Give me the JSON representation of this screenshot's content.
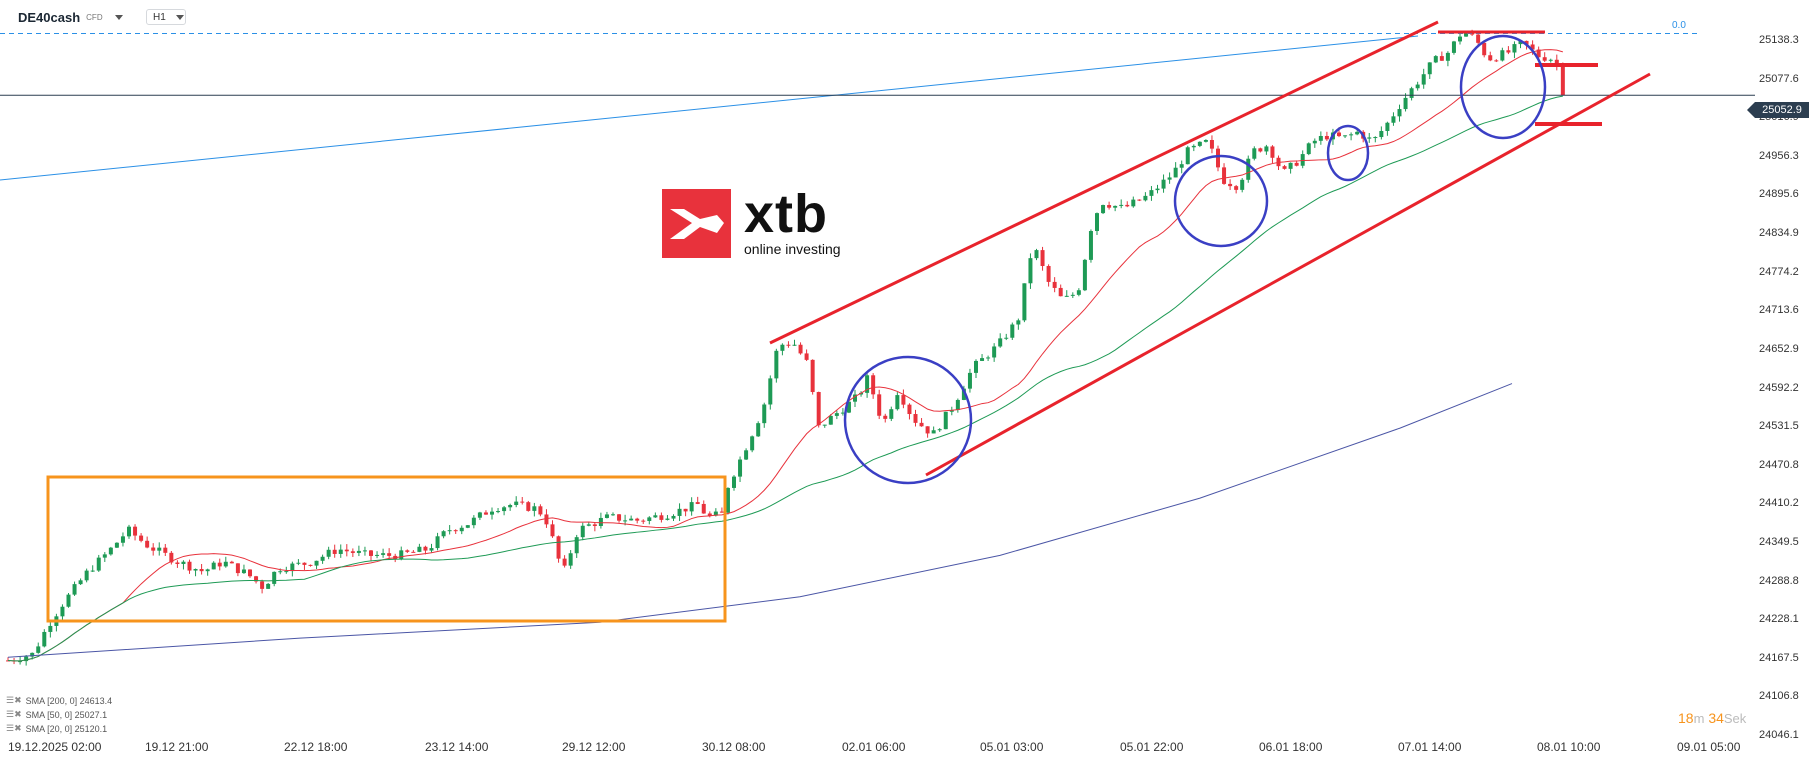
{
  "header": {
    "symbol": "DE40cash",
    "instrument_type": "CFD",
    "timeframe": "H1"
  },
  "fib_label": "0.0",
  "current_price": "25052.9",
  "y_axis": {
    "ticks": [
      "25138.3",
      "25077.6",
      "25016.9",
      "24956.3",
      "24895.6",
      "24834.9",
      "24774.2",
      "24713.6",
      "24652.9",
      "24592.2",
      "24531.5",
      "24470.8",
      "24410.2",
      "24349.5",
      "24288.8",
      "24228.1",
      "24167.5",
      "24106.8",
      "24046.1"
    ]
  },
  "x_axis": {
    "ticks": [
      "19.12.2025  02:00",
      "19.12  21:00",
      "22.12  18:00",
      "23.12  14:00",
      "29.12  12:00",
      "30.12  08:00",
      "02.01  06:00",
      "05.01  03:00",
      "05.01  22:00",
      "06.01  18:00",
      "07.01  14:00",
      "08.01  10:00",
      "09.01  05:00"
    ]
  },
  "legend": [
    {
      "label": "SMA [200, 0]  24613.4",
      "color": "#4b56a6"
    },
    {
      "label": "SMA [50, 0]  25027.1",
      "color": "#1e9a55"
    },
    {
      "label": "SMA [20, 0]  25120.1",
      "color": "#e8323c"
    }
  ],
  "timer": {
    "minutes": "18",
    "m_unit": "m",
    "seconds": "34",
    "s_unit": "Sek"
  },
  "logo": {
    "name": "xtb",
    "tagline": "online investing"
  },
  "colors": {
    "bull": "#1e9a55",
    "bear": "#e8323c",
    "sma20": "#e8323c",
    "sma50": "#1e9a55",
    "sma200": "#4b56a6",
    "channel": "#e8232c",
    "range_box": "#f7941d",
    "circles": "#3a3fc4",
    "fib_line": "#2b90e6"
  },
  "chart_data": {
    "type": "candlestick",
    "symbol": "DE40cash",
    "timeframe": "H1",
    "ylim": [
      24040,
      25168
    ],
    "last_price": 25052.9,
    "sma": [
      {
        "name": "SMA [20, 0]",
        "value": 25120.1
      },
      {
        "name": "SMA [50, 0]",
        "value": 25027.1
      },
      {
        "name": "SMA [200, 0]",
        "value": 24613.4
      }
    ],
    "fib_level": {
      "label": "0.0",
      "price": 25150
    },
    "horizontal_levels": [
      25052.9,
      25103,
      25035
    ]
  }
}
